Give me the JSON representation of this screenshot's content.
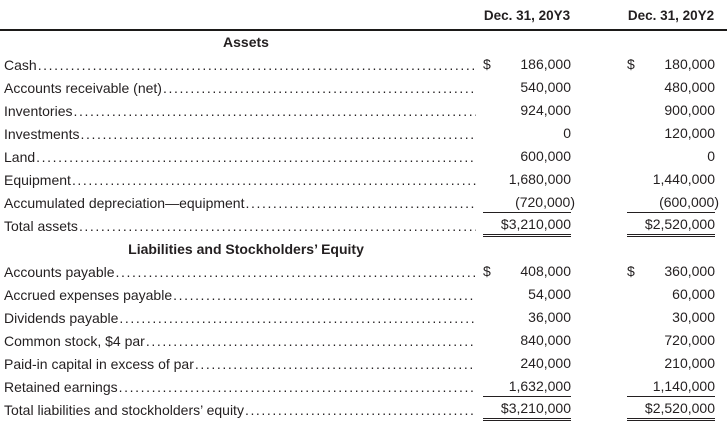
{
  "colors": {
    "text": "#231f20",
    "header_rule": "#1c1a19"
  },
  "table": {
    "column_headers": [
      "Dec. 31, 20Y3",
      "Dec. 31, 20Y2"
    ],
    "sections": [
      {
        "heading": "Assets",
        "rows": [
          {
            "label": "Cash",
            "values": [
              {
                "currency": "$",
                "amount": "186,000"
              },
              {
                "currency": "$",
                "amount": "180,000"
              }
            ],
            "rule": "none"
          },
          {
            "label": "Accounts receivable (net)",
            "values": [
              {
                "currency": "",
                "amount": "540,000"
              },
              {
                "currency": "",
                "amount": "480,000"
              }
            ],
            "rule": "none"
          },
          {
            "label": "Inventories",
            "values": [
              {
                "currency": "",
                "amount": "924,000"
              },
              {
                "currency": "",
                "amount": "900,000"
              }
            ],
            "rule": "none"
          },
          {
            "label": "Investments",
            "values": [
              {
                "currency": "",
                "amount": "0"
              },
              {
                "currency": "",
                "amount": "120,000"
              }
            ],
            "rule": "none"
          },
          {
            "label": "Land",
            "values": [
              {
                "currency": "",
                "amount": "600,000"
              },
              {
                "currency": "",
                "amount": "0"
              }
            ],
            "rule": "none"
          },
          {
            "label": "Equipment",
            "values": [
              {
                "currency": "",
                "amount": "1,680,000"
              },
              {
                "currency": "",
                "amount": "1,440,000"
              }
            ],
            "rule": "none"
          },
          {
            "label": "Accumulated depreciation—equipment",
            "values": [
              {
                "currency": "",
                "amount": "(720,000)"
              },
              {
                "currency": "",
                "amount": "(600,000)"
              }
            ],
            "rule": "single"
          },
          {
            "label": "Total assets",
            "values": [
              {
                "currency": "",
                "amount": "$3,210,000"
              },
              {
                "currency": "",
                "amount": "$2,520,000"
              }
            ],
            "rule": "double"
          }
        ]
      },
      {
        "heading": "Liabilities and Stockholders’ Equity",
        "rows": [
          {
            "label": "Accounts payable",
            "values": [
              {
                "currency": "$",
                "amount": "408,000"
              },
              {
                "currency": "$",
                "amount": "360,000"
              }
            ],
            "rule": "none"
          },
          {
            "label": "Accrued expenses payable",
            "values": [
              {
                "currency": "",
                "amount": "54,000"
              },
              {
                "currency": "",
                "amount": "60,000"
              }
            ],
            "rule": "none"
          },
          {
            "label": "Dividends payable",
            "values": [
              {
                "currency": "",
                "amount": "36,000"
              },
              {
                "currency": "",
                "amount": "30,000"
              }
            ],
            "rule": "none"
          },
          {
            "label": "Common stock, $4 par",
            "values": [
              {
                "currency": "",
                "amount": "840,000"
              },
              {
                "currency": "",
                "amount": "720,000"
              }
            ],
            "rule": "none"
          },
          {
            "label": "Paid-in capital in excess of par",
            "values": [
              {
                "currency": "",
                "amount": "240,000"
              },
              {
                "currency": "",
                "amount": "210,000"
              }
            ],
            "rule": "none"
          },
          {
            "label": "Retained earnings",
            "values": [
              {
                "currency": "",
                "amount": "1,632,000"
              },
              {
                "currency": "",
                "amount": "1,140,000"
              }
            ],
            "rule": "single"
          },
          {
            "label": "Total liabilities and stockholders’ equity",
            "values": [
              {
                "currency": "",
                "amount": "$3,210,000"
              },
              {
                "currency": "",
                "amount": "$2,520,000"
              }
            ],
            "rule": "double"
          }
        ]
      }
    ]
  }
}
